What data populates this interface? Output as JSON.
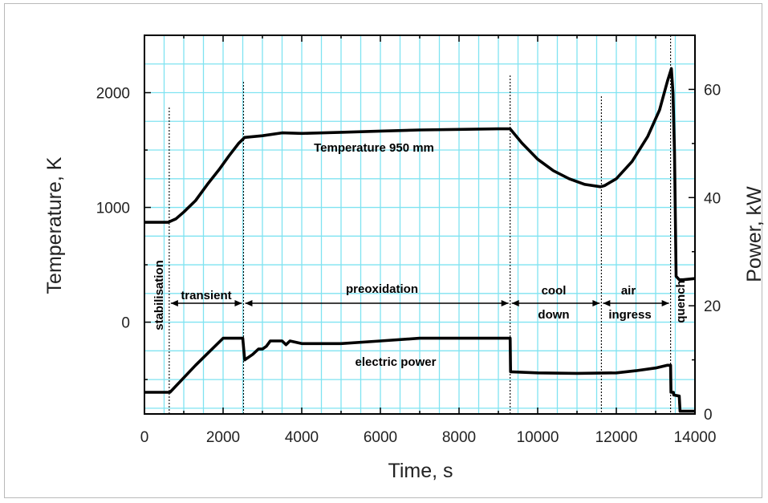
{
  "chart_data": {
    "type": "line",
    "xlabel": "Time, s",
    "ylabel_left": "Temperature, K",
    "ylabel_right": "Power, kW",
    "xlim": [
      0,
      14000
    ],
    "ylim_left": [
      -800,
      2500
    ],
    "ylim_right": [
      0,
      70
    ],
    "x_ticks": [
      0,
      2000,
      4000,
      6000,
      8000,
      10000,
      12000,
      14000
    ],
    "x_tick_labels": [
      "0",
      "2000",
      "4000",
      "6000",
      "8000",
      "10000",
      "12000",
      "14000"
    ],
    "y_left_ticks": [
      0,
      1000,
      2000
    ],
    "y_left_tick_labels": [
      "0",
      "1000",
      "2000"
    ],
    "y_right_ticks": [
      0,
      20,
      40,
      60
    ],
    "y_right_tick_labels": [
      "0",
      "20",
      "40",
      "60"
    ],
    "grid": true,
    "grid_color": "#7fe3f1",
    "line_color": "#000000",
    "series": [
      {
        "name": "Temperature 950 mm",
        "axis": "left",
        "x": [
          0,
          600,
          800,
          1000,
          1300,
          1600,
          1900,
          2150,
          2400,
          2550,
          3000,
          3500,
          4000,
          5000,
          6000,
          7000,
          8000,
          9000,
          9300,
          9600,
          10000,
          10400,
          10800,
          11200,
          11600,
          11700,
          12000,
          12400,
          12800,
          13100,
          13300,
          13400,
          13440,
          13480,
          13520,
          13600,
          13700,
          14000
        ],
        "y": [
          870,
          870,
          900,
          960,
          1060,
          1200,
          1330,
          1450,
          1560,
          1610,
          1625,
          1650,
          1645,
          1655,
          1665,
          1675,
          1680,
          1685,
          1685,
          1560,
          1420,
          1320,
          1250,
          1200,
          1180,
          1190,
          1250,
          1400,
          1620,
          1850,
          2100,
          2210,
          2000,
          1480,
          400,
          370,
          370,
          380
        ]
      },
      {
        "name": "electric power",
        "axis": "right",
        "x": [
          0,
          650,
          1300,
          2000,
          2500,
          2550,
          2750,
          2900,
          3000,
          3100,
          3200,
          3500,
          3600,
          3700,
          4000,
          5000,
          6000,
          7000,
          8000,
          9300,
          9310,
          10000,
          11000,
          12000,
          12500,
          13000,
          13300,
          13380,
          13390,
          13450,
          13460,
          13600,
          13620,
          14000
        ],
        "y": [
          4,
          4,
          9,
          14,
          14,
          10,
          11,
          12,
          12,
          12.5,
          13.5,
          13.5,
          12.8,
          13.5,
          13,
          13,
          13.5,
          14,
          14,
          14,
          7.8,
          7.6,
          7.5,
          7.6,
          8,
          8.5,
          9,
          9,
          4,
          4,
          3.5,
          3.3,
          0.5,
          0.5
        ]
      }
    ],
    "phase_boundaries": [
      630,
      2520,
      9300,
      11620,
      13380
    ],
    "annotations": {
      "temperature_label": "Temperature 950 mm",
      "power_label": "electric power",
      "phases": [
        "stabilisation",
        "transient",
        "preoxidation",
        "cool",
        "down",
        "air",
        "ingress",
        "quench"
      ]
    }
  }
}
